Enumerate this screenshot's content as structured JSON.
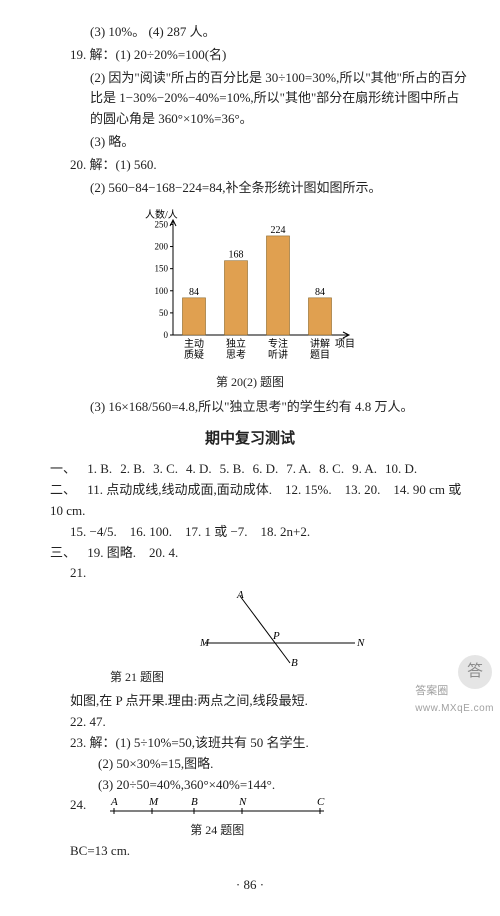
{
  "q18": {
    "p3": "(3) 10%。",
    "p4": "(4) 287 人。"
  },
  "q19": {
    "head": "19. 解：(1) 20÷20%=100(名)",
    "p2": "(2) 因为\"阅读\"所占的百分比是 30÷100=30%,所以\"其他\"所占的百分比是 1−30%−20%−40%=10%,所以\"其他\"部分在扇形统计图中所占的圆心角是 360°×10%=36°。",
    "p3": "(3) 略。"
  },
  "q20": {
    "head": "20. 解：(1) 560.",
    "p2": "(2) 560−84−168−224=84,补全条形统计图如图所示。",
    "p3": "(3) 16×168/560=4.8,所以\"独立思考\"的学生约有 4.8 万人。"
  },
  "chart": {
    "ylabel": "人数/人",
    "xlabel": "项目",
    "categories": [
      "主动\n质疑",
      "独立\n思考",
      "专注\n听讲",
      "讲解\n题目"
    ],
    "values": [
      84,
      168,
      224,
      84
    ],
    "bar_color": "#e0a050",
    "axis_color": "#000000",
    "y_ticks": [
      0,
      50,
      100,
      150,
      200,
      250
    ],
    "ylim": [
      0,
      260
    ],
    "caption_label": "第 20(2) 题图"
  },
  "midterm": {
    "title": "期中复习测试",
    "part1_label": "一、",
    "part1_items": [
      "1. B.",
      "2. B.",
      "3. C.",
      "4. D.",
      "5. B.",
      "6. D.",
      "7. A.",
      "8. C.",
      "9. A.",
      "10. D."
    ],
    "part2_label": "二、",
    "part2_line1": "11. 点动成线,线动成面,面动成体.　12. 15%.　13. 20.　14. 90 cm 或 10 cm.",
    "part2_line2": "15. −4/5.　16. 100.　17. 1 或 −7.　18. 2n+2.",
    "part3_label": "三、",
    "part3_items": {
      "l1": "19. 图略.　20. 4.",
      "q21": "21.",
      "q21_caption": "第 21 题图",
      "q21_text": "如图,在 P 点开果.理由:两点之间,线段最短.",
      "q22": "22. 47.",
      "q23a": "23. 解：(1) 5÷10%=50,该班共有 50 名学生.",
      "q23b": "(2) 50×30%=15,图略.",
      "q23c": "(3) 20÷50=40%,360°×40%=144°.",
      "q24": "24.",
      "q24_caption": "第 24 题图",
      "q24_text": "BC=13 cm."
    }
  },
  "geom21": {
    "points": [
      "A",
      "M",
      "P",
      "N",
      "B"
    ],
    "line_color": "#000"
  },
  "geom24": {
    "points": [
      "A",
      "M",
      "B",
      "N",
      "C"
    ],
    "line_color": "#000"
  },
  "page_number": "· 86 ·",
  "watermark": {
    "line1": "答案圈",
    "line2": "www.MXqE.com"
  }
}
